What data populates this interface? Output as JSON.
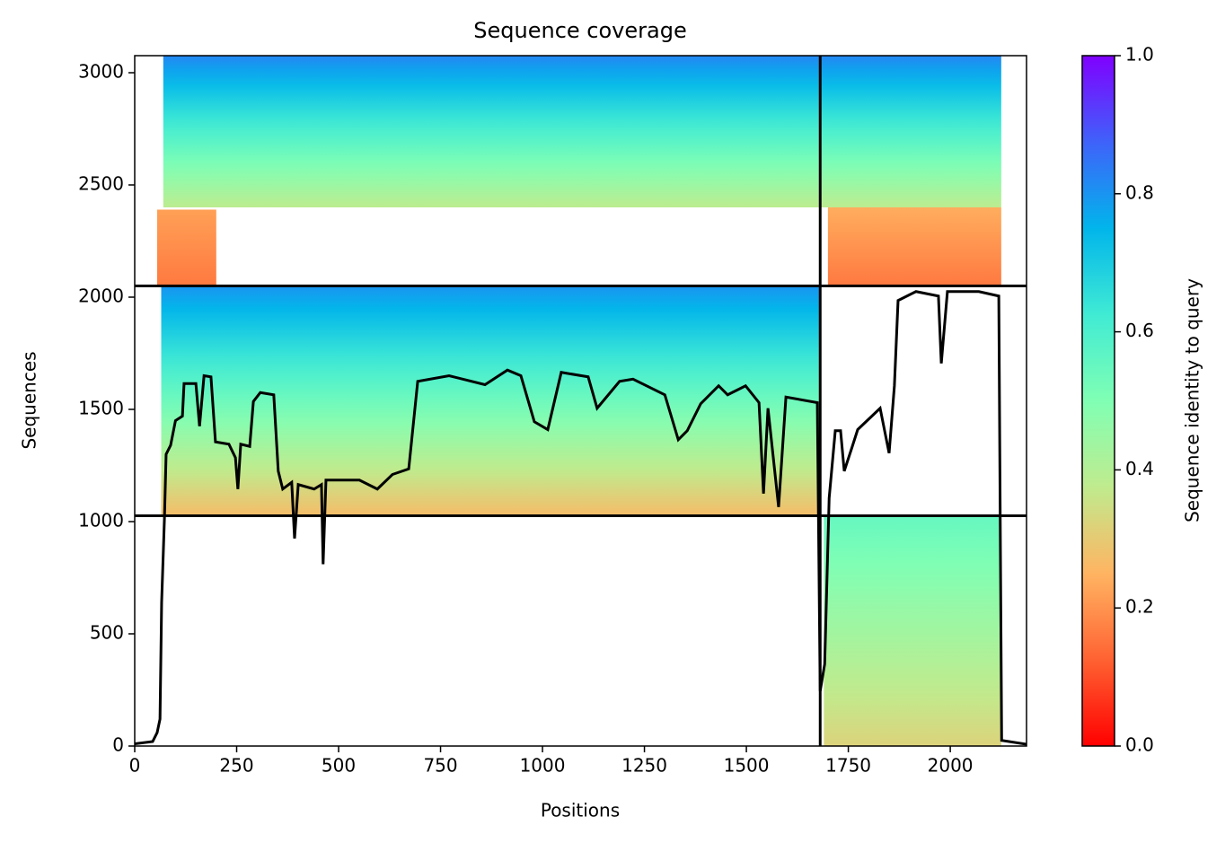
{
  "chart_data": {
    "type": "coverage",
    "title": "Sequence coverage",
    "x_label": "Positions",
    "y_label": "Sequences",
    "colorbar_label": "Sequence identity to query",
    "xlim": [
      0,
      2187
    ],
    "ylim": [
      0,
      3076
    ],
    "xticks": [
      0,
      250,
      500,
      750,
      1000,
      1250,
      1500,
      1750,
      2000
    ],
    "yticks": [
      0,
      500,
      1000,
      1500,
      2000,
      2500,
      3000
    ],
    "clim": [
      0,
      1
    ],
    "cticks": [
      0.0,
      0.2,
      0.4,
      0.6,
      0.8,
      1.0
    ],
    "colormap": [
      "#ff0000",
      "#ff6232",
      "#ffb462",
      "#c0eb8e",
      "#80ffb4",
      "#40ebd4",
      "#01b5eb",
      "#3f62fa",
      "#8000ff"
    ],
    "blocks": [
      {
        "x": [
          70,
          1681
        ],
        "y": [
          2400,
          3076
        ],
        "identity": [
          0.82,
          0.38
        ]
      },
      {
        "x": [
          55,
          200
        ],
        "y": [
          2050,
          2390
        ],
        "identity": [
          0.22,
          0.16
        ]
      },
      {
        "x": [
          1681,
          2125
        ],
        "y": [
          2400,
          3076
        ],
        "identity": [
          0.82,
          0.38
        ]
      },
      {
        "x": [
          1700,
          2125
        ],
        "y": [
          2050,
          2400
        ],
        "identity": [
          0.24,
          0.16
        ]
      },
      {
        "x": [
          65,
          1681
        ],
        "y": [
          1030,
          2050
        ],
        "identity": [
          0.8,
          0.27
        ]
      },
      {
        "x": [
          1690,
          2125
        ],
        "y": [
          0,
          1026
        ],
        "identity": [
          0.55,
          0.32
        ]
      }
    ],
    "hlines": [
      1026,
      2050
    ],
    "vlines": [
      1681
    ],
    "line_color": "#000000",
    "x": [
      0,
      44,
      55,
      62,
      66,
      73,
      77,
      88,
      100,
      117,
      121,
      150,
      159,
      170,
      187,
      198,
      231,
      247,
      253,
      260,
      282,
      291,
      308,
      341,
      352,
      363,
      385,
      392,
      401,
      440,
      458,
      462,
      469,
      551,
      595,
      632,
      672,
      694,
      771,
      859,
      914,
      947,
      980,
      1013,
      1046,
      1112,
      1134,
      1189,
      1222,
      1300,
      1333,
      1355,
      1388,
      1432,
      1454,
      1498,
      1531,
      1542,
      1553,
      1579,
      1597,
      1674,
      1681,
      1692,
      1703,
      1718,
      1731,
      1740,
      1758,
      1773,
      1828,
      1850,
      1863,
      1872,
      1916,
      1971,
      1978,
      1993,
      2070,
      2119,
      2126,
      2187
    ],
    "values": [
      10,
      20,
      60,
      120,
      640,
      1020,
      1300,
      1340,
      1450,
      1470,
      1615,
      1615,
      1425,
      1650,
      1645,
      1355,
      1345,
      1285,
      1145,
      1345,
      1335,
      1535,
      1575,
      1565,
      1225,
      1145,
      1175,
      925,
      1165,
      1145,
      1165,
      810,
      1185,
      1185,
      1145,
      1210,
      1235,
      1625,
      1650,
      1610,
      1675,
      1650,
      1445,
      1410,
      1665,
      1645,
      1505,
      1625,
      1635,
      1565,
      1365,
      1405,
      1525,
      1605,
      1565,
      1605,
      1530,
      1125,
      1505,
      1065,
      1555,
      1530,
      245,
      365,
      1105,
      1405,
      1405,
      1225,
      1325,
      1410,
      1505,
      1305,
      1605,
      1985,
      2025,
      2005,
      1705,
      2025,
      2025,
      2005,
      25,
      8
    ]
  }
}
